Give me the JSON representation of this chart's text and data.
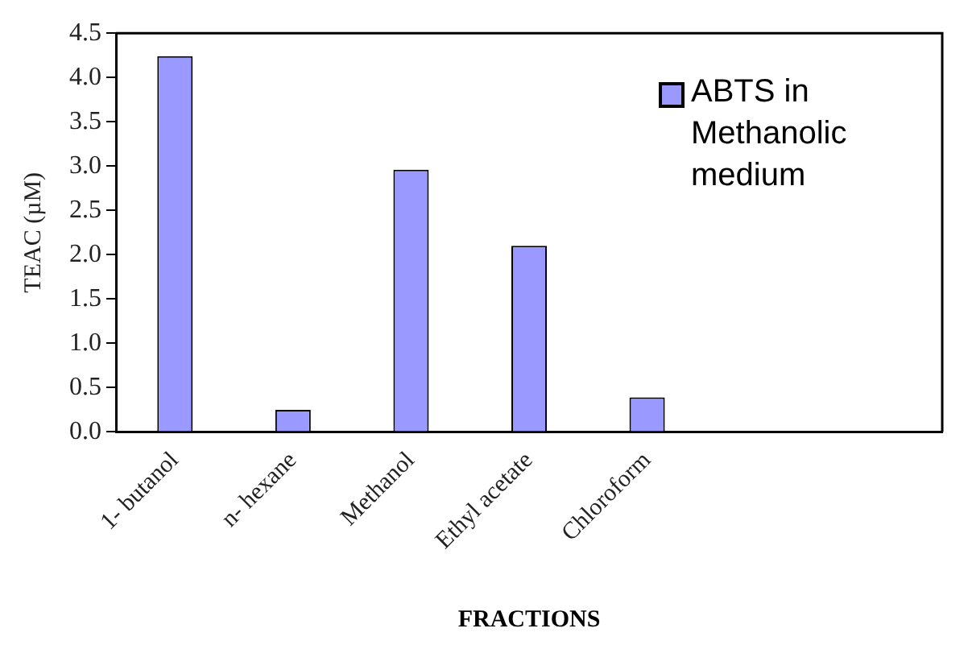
{
  "chart_data": {
    "type": "bar",
    "xlabel": "FRACTIONS",
    "ylabel": "TEAC (µM)",
    "categories": [
      "1- butanol",
      "n- hexane",
      "Methanol",
      "Ethyl acetate",
      "Chloroform",
      null,
      null
    ],
    "series": [
      {
        "name": "ABTS in Methanolic medium",
        "color": "#9999ff",
        "values": [
          4.24,
          0.25,
          2.96,
          2.1,
          0.39,
          null,
          null
        ]
      }
    ],
    "ylim": [
      0,
      4.5
    ],
    "yticks": [
      {
        "value": 0,
        "label": "0.0"
      },
      0.5,
      {
        "value": 1,
        "label": "1.0"
      },
      1.5,
      {
        "value": 2,
        "label": "2.0"
      },
      2.5,
      {
        "value": 3,
        "label": "3.0"
      },
      3.5,
      {
        "value": 4,
        "label": "4.0"
      },
      4.5
    ],
    "grid": false,
    "legend": "top right"
  }
}
